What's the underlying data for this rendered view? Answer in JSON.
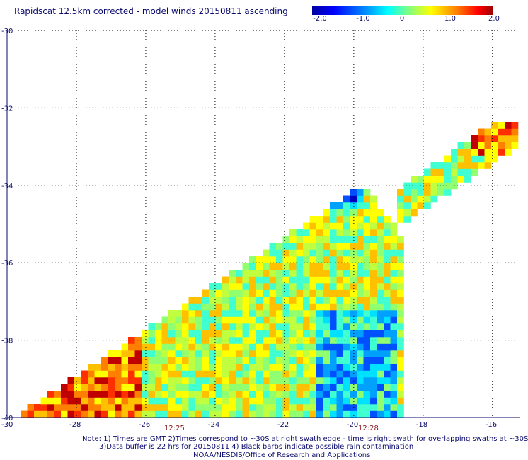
{
  "title": "Rapidscat 12.5km corrected - model winds 20150811 ascending",
  "colorbar": {
    "ticks": [
      "-2.0",
      "-1.0",
      "0",
      "1.0",
      "2.0"
    ],
    "colors": [
      "#0000a0",
      "#0000ff",
      "#0080ff",
      "#00ffff",
      "#80ff80",
      "#ffff00",
      "#ff8000",
      "#ff0000",
      "#a00000"
    ]
  },
  "map": {
    "lat_labels": [
      "-30",
      "-32",
      "-34",
      "-36",
      "-38",
      "-40"
    ],
    "lon_labels": [
      "-30",
      "-28",
      "-26",
      "-24",
      "-22",
      "-20",
      "-18",
      "-16"
    ],
    "time_labels": [
      "12:25",
      "12:28"
    ],
    "lat_range": [
      -40,
      -30
    ],
    "lon_range": [
      -30,
      -15.2
    ],
    "grid": true,
    "swath_description_colors": [
      "#0000ff",
      "#00ffff",
      "#80ff80",
      "#ffff00",
      "#ff8000",
      "#ff0000"
    ]
  },
  "notes": {
    "line1": "Note: 1) Times are GMT 2)Times correspond to ~30S at right swath edge - time is right swath for overlapping swaths at ~30S",
    "line2": "3)Data buffer is 22 hrs for 20150811 4) Black barbs indicate possible rain contamination",
    "line3": "NOAA/NESDIS/Office of Research and Applications"
  }
}
